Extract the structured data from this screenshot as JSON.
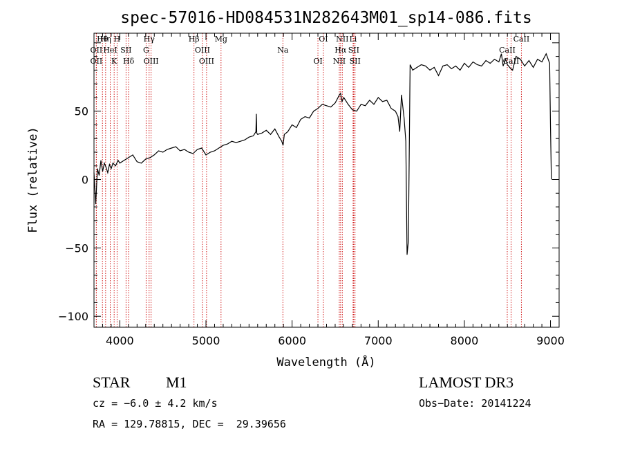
{
  "chart_data": {
    "type": "line",
    "title": "spec-57016-HD084531N282643M01_sp14-086.fits",
    "xlabel": "Wavelength (Å)",
    "ylabel": "Flux (relative)",
    "xlim": [
      3700,
      9100
    ],
    "ylim": [
      -108,
      107
    ],
    "x_ticks": [
      4000,
      5000,
      6000,
      7000,
      8000,
      9000
    ],
    "y_ticks": [
      -100,
      -50,
      0,
      50
    ],
    "series_color": "#000000",
    "line_marker_color": "#cc0000",
    "series": [
      {
        "x": [
          3700,
          3720,
          3740,
          3760,
          3780,
          3800,
          3820,
          3840,
          3860,
          3880,
          3900,
          3920,
          3950,
          3980,
          4000,
          4050,
          4100,
          4150,
          4200,
          4250,
          4300,
          4350,
          4400,
          4450,
          4500,
          4550,
          4600,
          4650,
          4700,
          4750,
          4800,
          4850,
          4900,
          4950,
          5000,
          5050,
          5100,
          5150,
          5200,
          5250,
          5300,
          5350,
          5400,
          5450,
          5500,
          5550,
          5580,
          5585,
          5590,
          5600,
          5650,
          5700,
          5750,
          5800,
          5850,
          5880,
          5895,
          5910,
          5950,
          6000,
          6050,
          6100,
          6150,
          6200,
          6250,
          6300,
          6350,
          6400,
          6450,
          6500,
          6550,
          6563,
          6580,
          6600,
          6650,
          6700,
          6750,
          6800,
          6850,
          6900,
          6950,
          7000,
          7050,
          7100,
          7150,
          7200,
          7230,
          7250,
          7270,
          7300,
          7320,
          7335,
          7350,
          7370,
          7400,
          7450,
          7500,
          7550,
          7600,
          7650,
          7700,
          7750,
          7800,
          7850,
          7900,
          7950,
          8000,
          8050,
          8100,
          8150,
          8200,
          8250,
          8300,
          8350,
          8400,
          8430,
          8450,
          8480,
          8500,
          8540,
          8560,
          8600,
          8650,
          8700,
          8750,
          8800,
          8850,
          8900,
          8950,
          8990,
          9000,
          9010
        ],
        "y": [
          5,
          -18,
          8,
          3,
          14,
          6,
          12,
          9,
          5,
          11,
          8,
          12,
          10,
          14,
          12,
          14,
          16,
          18,
          13,
          12,
          15,
          16,
          18,
          21,
          20,
          22,
          23,
          24,
          21,
          22,
          20,
          19,
          22,
          23,
          18,
          20,
          21,
          23,
          25,
          26,
          28,
          27,
          28,
          29,
          31,
          32,
          35,
          48,
          34,
          33,
          34,
          36,
          33,
          37,
          31,
          28,
          25,
          33,
          35,
          40,
          38,
          44,
          46,
          45,
          50,
          52,
          55,
          54,
          53,
          56,
          62,
          63,
          57,
          60,
          55,
          51,
          50,
          55,
          54,
          58,
          55,
          60,
          57,
          58,
          52,
          50,
          46,
          35,
          62,
          45,
          28,
          -55,
          -45,
          84,
          80,
          82,
          84,
          83,
          80,
          82,
          76,
          83,
          84,
          81,
          83,
          80,
          85,
          82,
          86,
          84,
          83,
          87,
          85,
          88,
          86,
          92,
          83,
          88,
          84,
          81,
          80,
          90,
          88,
          83,
          87,
          82,
          88,
          86,
          92,
          85,
          40,
          0
        ],
        "name": ""
      }
    ],
    "spectral_lines": [
      {
        "name": "Hθ",
        "wl": 3798
      },
      {
        "name": "OII",
        "wl": 3727
      },
      {
        "name": "OII",
        "wl": 3727
      },
      {
        "name": "Hη",
        "wl": 3835
      },
      {
        "name": "HeI",
        "wl": 3889
      },
      {
        "name": "K",
        "wl": 3934
      },
      {
        "name": "H",
        "wl": 3968
      },
      {
        "name": "SII",
        "wl": 4072
      },
      {
        "name": "Hδ",
        "wl": 4102
      },
      {
        "name": "Hγ",
        "wl": 4340
      },
      {
        "name": "G",
        "wl": 4305
      },
      {
        "name": "OIII",
        "wl": 4363
      },
      {
        "name": "Hβ",
        "wl": 4861
      },
      {
        "name": "OIII",
        "wl": 4959
      },
      {
        "name": "OIII",
        "wl": 5007
      },
      {
        "name": "Mg",
        "wl": 5175
      },
      {
        "name": "Na",
        "wl": 5893
      },
      {
        "name": "OI",
        "wl": 6300
      },
      {
        "name": "OI",
        "wl": 6363
      },
      {
        "name": "Hα",
        "wl": 6563
      },
      {
        "name": "NII",
        "wl": 6548
      },
      {
        "name": "NII",
        "wl": 6583
      },
      {
        "name": "SII",
        "wl": 6716
      },
      {
        "name": "SII",
        "wl": 6731
      },
      {
        "name": "Li",
        "wl": 6708
      },
      {
        "name": "CaII",
        "wl": 8498
      },
      {
        "name": "CaII",
        "wl": 8542
      },
      {
        "name": "CaII",
        "wl": 8662
      }
    ]
  },
  "info": {
    "object_class": "STAR",
    "subclass": "M1",
    "survey": "LAMOST DR3",
    "cz": "cz = −6.0 ± 4.2 km/s",
    "obs_date": "Obs−Date: 20141224",
    "coords": "RA = 129.78815, DEC =  29.39656"
  }
}
